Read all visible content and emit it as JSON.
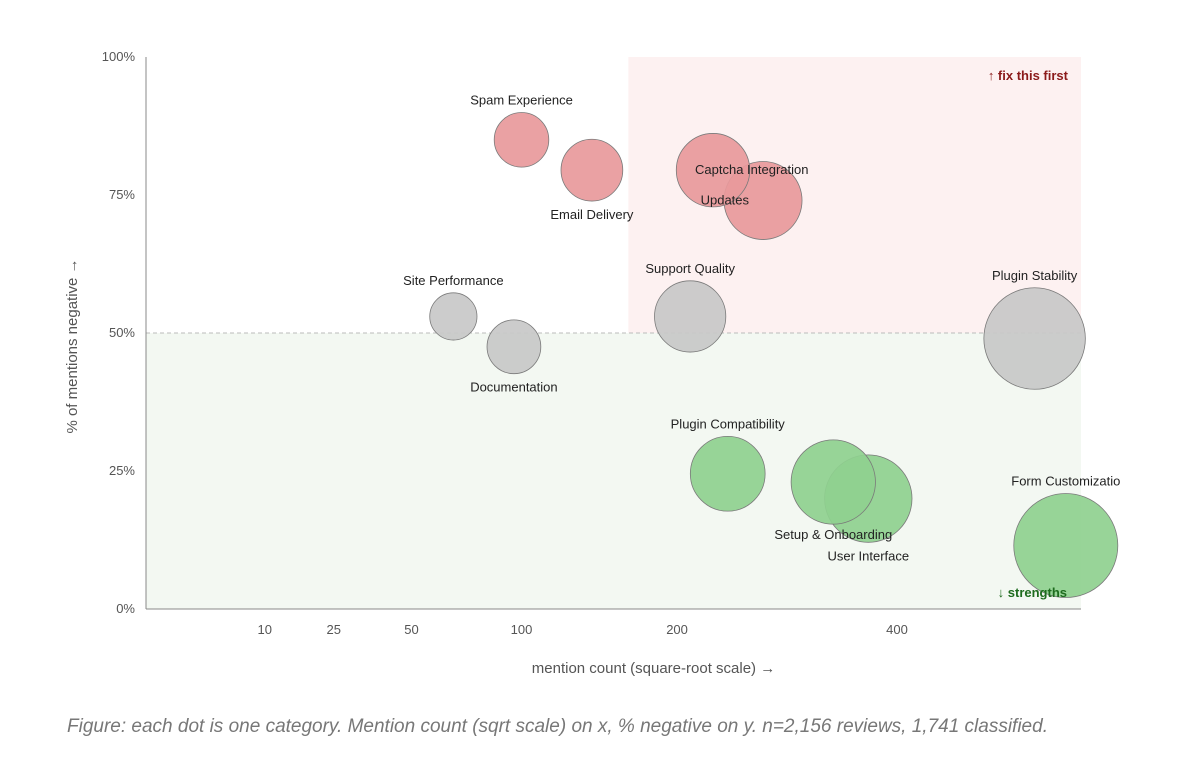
{
  "caption": "Figure: each dot is one category. Mention count (sqrt scale) on x, % negative on y. n=2,156 reviews, 1,741 classified.",
  "chart_data": {
    "type": "scatter",
    "xlabel": "mention count (square-root scale) →",
    "ylabel": "% of mentions negative →",
    "x_scale": "sqrt",
    "xlim": [
      0,
      620
    ],
    "ylim": [
      0,
      100
    ],
    "x_ticks": [
      10,
      25,
      50,
      100,
      200,
      400
    ],
    "x_tick_labels": [
      "10",
      "25",
      "50",
      "100",
      "200",
      "400"
    ],
    "y_ticks": [
      0,
      25,
      50,
      75,
      100
    ],
    "y_tick_labels": [
      "0%",
      "25%",
      "50%",
      "75%",
      "100%"
    ],
    "reference_line_y": 50,
    "highlight_x_threshold": 165,
    "zones": {
      "top_label": "↑ fix this first",
      "bottom_label": "↓ strengths"
    },
    "colors": {
      "negative": "#e8999b",
      "neutral": "#c8c8c8",
      "positive": "#8fd08f",
      "top_zone": "#fdf1f1",
      "bottom_zone": "#f3f8f2",
      "top_label": "#8b1a1a",
      "bottom_label": "#1e6b1e"
    },
    "points": [
      {
        "label": "Spam Experience",
        "x": 100,
        "y": 85,
        "size": 100,
        "group": "negative",
        "label_pos": "above"
      },
      {
        "label": "Email Delivery",
        "x": 141,
        "y": 79.5,
        "size": 141,
        "group": "negative",
        "label_pos": "below"
      },
      {
        "label": "Captcha Integration",
        "x": 228,
        "y": 79.5,
        "size": 228,
        "group": "negative",
        "label_pos": "right"
      },
      {
        "label": "Updates",
        "x": 270,
        "y": 74,
        "size": 270,
        "group": "negative",
        "label_pos": "left"
      },
      {
        "label": "Site Performance",
        "x": 67,
        "y": 53,
        "size": 67,
        "group": "neutral",
        "label_pos": "above"
      },
      {
        "label": "Documentation",
        "x": 96,
        "y": 47.5,
        "size": 96,
        "group": "neutral",
        "label_pos": "below"
      },
      {
        "label": "Support Quality",
        "x": 210,
        "y": 53,
        "size": 210,
        "group": "neutral",
        "label_pos": "above"
      },
      {
        "label": "Plugin Stability",
        "x": 560,
        "y": 49,
        "size": 560,
        "group": "neutral",
        "label_pos": "above"
      },
      {
        "label": "Plugin Compatibility",
        "x": 240,
        "y": 24.5,
        "size": 240,
        "group": "positive",
        "label_pos": "above"
      },
      {
        "label": "Setup & Onboarding",
        "x": 335,
        "y": 23,
        "size": 335,
        "group": "positive",
        "label_pos": "below"
      },
      {
        "label": "User Interface",
        "x": 370,
        "y": 20,
        "size": 370,
        "group": "positive",
        "label_pos": "below"
      },
      {
        "label": "Form Customizatio",
        "x": 600,
        "y": 11.5,
        "size": 600,
        "group": "positive",
        "label_pos": "above"
      }
    ]
  }
}
